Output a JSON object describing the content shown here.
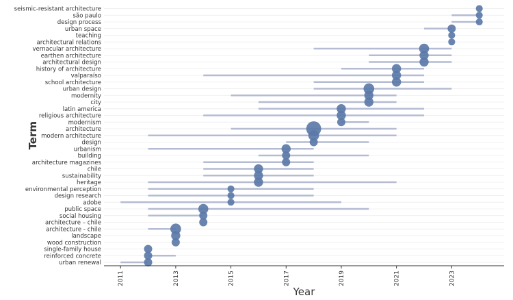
{
  "chart_data": {
    "type": "scatter",
    "subtype": "trend-topics",
    "xlabel": "Year",
    "ylabel": "Term",
    "xlim": [
      2010.4,
      2024.9
    ],
    "x_ticks": [
      2011,
      2013,
      2015,
      2017,
      2019,
      2021,
      2023
    ],
    "grid": "horizontal",
    "point_color": "#5b79a8",
    "range_color": "#b4bbd3",
    "terms": [
      {
        "term": "seismic-resistant architecture",
        "start": 2024,
        "median": 2024,
        "end": 2024,
        "freq": 2
      },
      {
        "term": "são paulo",
        "start": 2023,
        "median": 2024,
        "end": 2024,
        "freq": 2
      },
      {
        "term": "design process",
        "start": 2023,
        "median": 2024,
        "end": 2024,
        "freq": 2
      },
      {
        "term": "urban space",
        "start": 2022,
        "median": 2023,
        "end": 2023,
        "freq": 3
      },
      {
        "term": "teaching",
        "start": 2023,
        "median": 2023,
        "end": 2023,
        "freq": 2
      },
      {
        "term": "architectural relations",
        "start": 2023,
        "median": 2023,
        "end": 2023,
        "freq": 2
      },
      {
        "term": "vernacular architecture",
        "start": 2018,
        "median": 2022,
        "end": 2023,
        "freq": 5
      },
      {
        "term": "earthen architecture",
        "start": 2020,
        "median": 2022,
        "end": 2023,
        "freq": 4
      },
      {
        "term": "architectural design",
        "start": 2020,
        "median": 2022,
        "end": 2023,
        "freq": 4
      },
      {
        "term": "history of architecture",
        "start": 2019,
        "median": 2021,
        "end": 2022,
        "freq": 4
      },
      {
        "term": "valparaíso",
        "start": 2014,
        "median": 2021,
        "end": 2022,
        "freq": 4
      },
      {
        "term": "school architecture",
        "start": 2018,
        "median": 2021,
        "end": 2022,
        "freq": 4
      },
      {
        "term": "urban design",
        "start": 2018,
        "median": 2020,
        "end": 2023,
        "freq": 6
      },
      {
        "term": "modernity",
        "start": 2015,
        "median": 2020,
        "end": 2021,
        "freq": 4
      },
      {
        "term": "city",
        "start": 2016,
        "median": 2020,
        "end": 2021,
        "freq": 4
      },
      {
        "term": "latin america",
        "start": 2016,
        "median": 2019,
        "end": 2022,
        "freq": 4
      },
      {
        "term": "religious architecture",
        "start": 2014,
        "median": 2019,
        "end": 2022,
        "freq": 4
      },
      {
        "term": "modernism",
        "start": 2019,
        "median": 2019,
        "end": 2020,
        "freq": 3
      },
      {
        "term": "architecture",
        "start": 2015,
        "median": 2018,
        "end": 2021,
        "freq": 14
      },
      {
        "term": "modern architecture",
        "start": 2012,
        "median": 2018,
        "end": 2021,
        "freq": 6
      },
      {
        "term": "design",
        "start": 2017,
        "median": 2018,
        "end": 2020,
        "freq": 3
      },
      {
        "term": "urbanism",
        "start": 2012,
        "median": 2017,
        "end": 2018,
        "freq": 4
      },
      {
        "term": "building",
        "start": 2016,
        "median": 2017,
        "end": 2020,
        "freq": 3
      },
      {
        "term": "architecture magazines",
        "start": 2014,
        "median": 2017,
        "end": 2018,
        "freq": 3
      },
      {
        "term": "chile",
        "start": 2014,
        "median": 2016,
        "end": 2018,
        "freq": 4
      },
      {
        "term": "sustainability",
        "start": 2014,
        "median": 2016,
        "end": 2018,
        "freq": 4
      },
      {
        "term": "heritage",
        "start": 2012,
        "median": 2016,
        "end": 2021,
        "freq": 4
      },
      {
        "term": "environmental perception",
        "start": 2012,
        "median": 2015,
        "end": 2018,
        "freq": 2
      },
      {
        "term": "design research",
        "start": 2012,
        "median": 2015,
        "end": 2018,
        "freq": 2
      },
      {
        "term": "adobe",
        "start": 2011,
        "median": 2015,
        "end": 2019,
        "freq": 2
      },
      {
        "term": "public space",
        "start": 2012,
        "median": 2014,
        "end": 2020,
        "freq": 5
      },
      {
        "term": "social housing",
        "start": 2012,
        "median": 2014,
        "end": 2014,
        "freq": 3
      },
      {
        "term": "architecture – chile",
        "start": 2014,
        "median": 2014,
        "end": 2014,
        "freq": 3
      },
      {
        "term": "architecture - chile",
        "start": 2012,
        "median": 2013,
        "end": 2013,
        "freq": 6
      },
      {
        "term": "landscape",
        "start": 2013,
        "median": 2013,
        "end": 2013,
        "freq": 4
      },
      {
        "term": "wood construction",
        "start": 2013,
        "median": 2013,
        "end": 2013,
        "freq": 3
      },
      {
        "term": "single-family house",
        "start": 2012,
        "median": 2012,
        "end": 2012,
        "freq": 3
      },
      {
        "term": "reinforced concrete",
        "start": 2012,
        "median": 2012,
        "end": 2013,
        "freq": 3
      },
      {
        "term": "urban renewal",
        "start": 2011,
        "median": 2012,
        "end": 2012,
        "freq": 3
      }
    ]
  }
}
